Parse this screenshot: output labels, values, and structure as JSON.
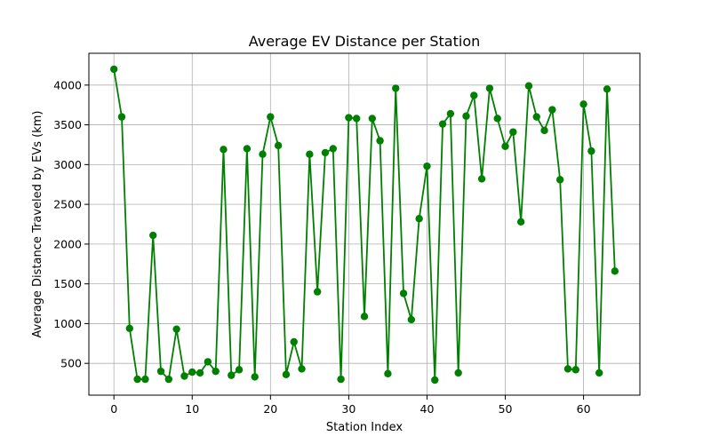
{
  "chart_data": {
    "type": "line",
    "title": "Average EV Distance per Station",
    "xlabel": "Station Index",
    "ylabel": "Average Distance Traveled by EVs (km)",
    "xlim": [
      -3.2,
      67.2
    ],
    "ylim": [
      100,
      4400
    ],
    "xticks": [
      0,
      10,
      20,
      30,
      40,
      50,
      60
    ],
    "yticks": [
      500,
      1000,
      1500,
      2000,
      2500,
      3000,
      3500,
      4000
    ],
    "grid": true,
    "marker": "circle",
    "color": "#008000",
    "series": [
      {
        "x": [
          0,
          1,
          2,
          3,
          4,
          5,
          6,
          7,
          8,
          9,
          10,
          11,
          12,
          13,
          14,
          15,
          16,
          17,
          18,
          19,
          20,
          21,
          22,
          23,
          24,
          25,
          26,
          27,
          28,
          29,
          30,
          31,
          32,
          33,
          34,
          35,
          36,
          37,
          38,
          39,
          40,
          41,
          42,
          43,
          44,
          45,
          46,
          47,
          48,
          49,
          50,
          51,
          52,
          53,
          54,
          55,
          56,
          57,
          58,
          59,
          60,
          61,
          62,
          63,
          64
        ],
        "values": [
          4200,
          3600,
          940,
          300,
          300,
          2110,
          400,
          300,
          930,
          340,
          390,
          380,
          520,
          400,
          3190,
          350,
          420,
          3200,
          330,
          3130,
          3600,
          3240,
          360,
          770,
          430,
          3130,
          1400,
          3150,
          3200,
          300,
          3590,
          3580,
          1090,
          3580,
          3300,
          370,
          3960,
          1380,
          1050,
          2320,
          2980,
          290,
          3510,
          3640,
          380,
          3610,
          3870,
          2820,
          3960,
          3580,
          3230,
          3410,
          2280,
          3990,
          3600,
          3430,
          3690,
          2810,
          430,
          420,
          3760,
          3170,
          380,
          3950,
          1660
        ]
      }
    ]
  }
}
